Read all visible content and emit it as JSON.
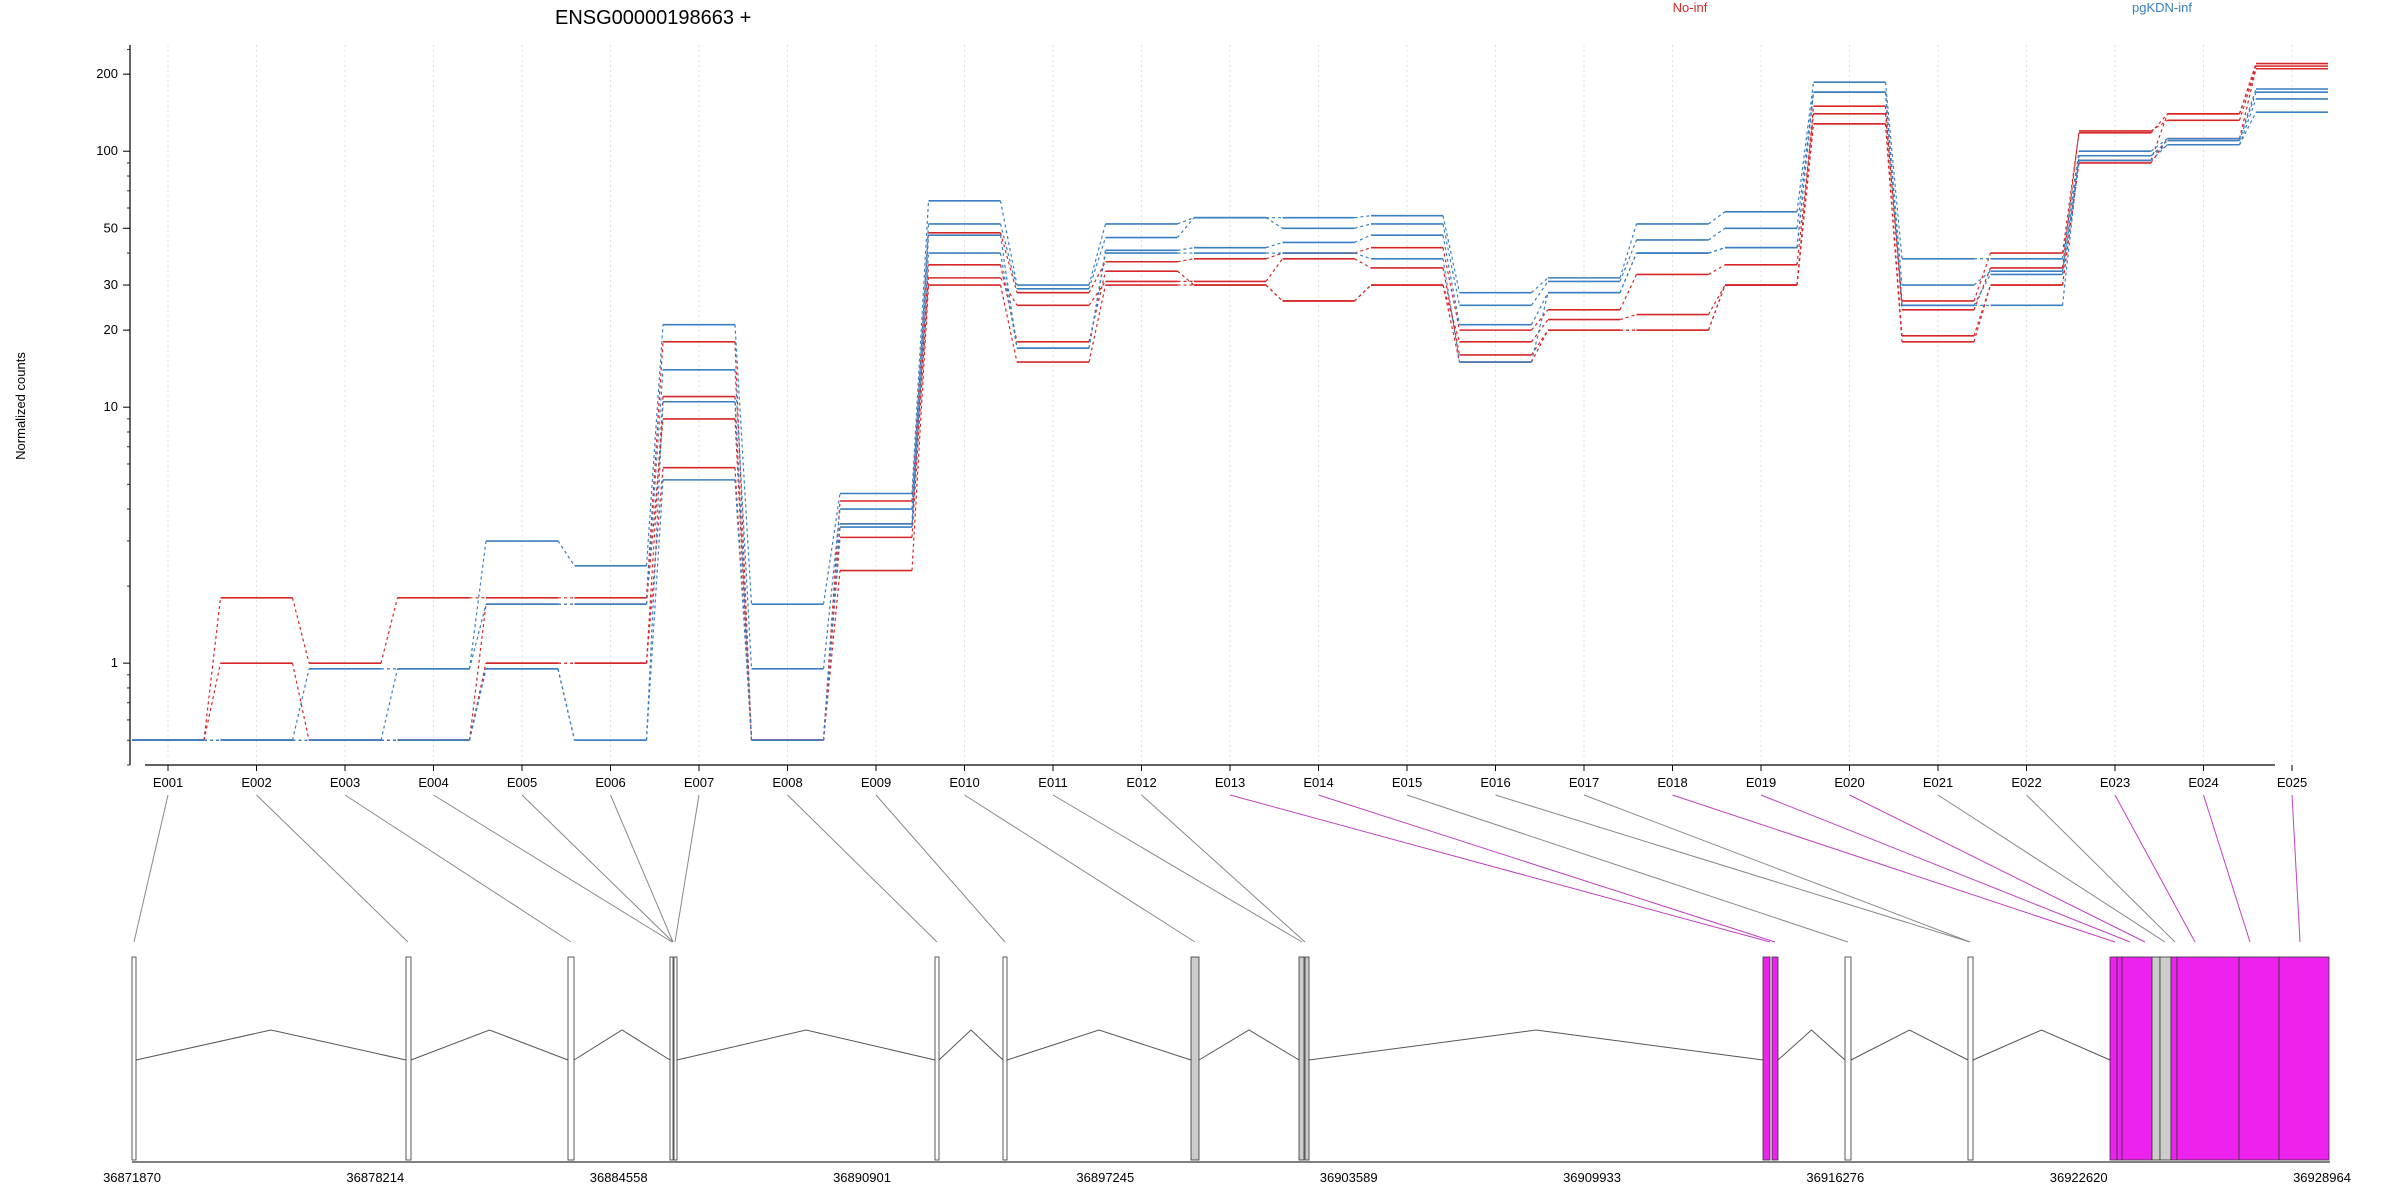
{
  "chart_data": {
    "type": "line",
    "title": "ENSG00000198663 +",
    "ylabel": "Normalized counts",
    "xlabel": "",
    "yscale": "log",
    "grid": "vertical dotted lines at exon tick positions",
    "legend": "top, text labels only",
    "colors": {
      "No-inf": "#d62728",
      "pgKDN-inf": "#3a7fc1",
      "connector": "#888888",
      "connector_highlight": "#c040c0",
      "exon_highlight": "#ee22ee",
      "exon_gray": "#cccccc"
    },
    "yticks": [
      "1",
      "10",
      "20",
      "30",
      "50",
      "100",
      "200"
    ],
    "categories": [
      "E001",
      "E002",
      "E003",
      "E004",
      "E005",
      "E006",
      "E007",
      "E008",
      "E009",
      "E010",
      "E011",
      "E012",
      "E013",
      "E014",
      "E015",
      "E016",
      "E017",
      "E018",
      "E019",
      "E020",
      "E021",
      "E022",
      "E023",
      "E024",
      "E025"
    ],
    "series": [
      {
        "name": "No-inf",
        "values": [
          0.5,
          1.8,
          1.0,
          1.8,
          1.8,
          1.8,
          18,
          0.5,
          4.3,
          48,
          28,
          37,
          38,
          40,
          42,
          20,
          24,
          33,
          36,
          140,
          26,
          40,
          118,
          140,
          220
        ]
      },
      {
        "name": "No-inf",
        "values": [
          0.5,
          1.0,
          0.5,
          0.5,
          1.0,
          1.0,
          11,
          0.5,
          3.5,
          36,
          18,
          34,
          30,
          26,
          30,
          18,
          22,
          23,
          30,
          150,
          24,
          35,
          120,
          132,
          210
        ]
      },
      {
        "name": "No-inf",
        "values": [
          0.5,
          0.5,
          0.5,
          0.5,
          1.7,
          1.7,
          9,
          0.5,
          3.1,
          32,
          25,
          31,
          31,
          38,
          35,
          16,
          20,
          20,
          30,
          128,
          19,
          30,
          92,
          140,
          215
        ]
      },
      {
        "name": "No-inf",
        "values": [
          0.5,
          0.5,
          0.5,
          0.5,
          1.0,
          1.0,
          5.8,
          0.5,
          2.3,
          30,
          15,
          30,
          30,
          26,
          30,
          15,
          20,
          20,
          30,
          128,
          18,
          30,
          90,
          112,
          210
        ]
      },
      {
        "name": "pgKDN-inf",
        "values": [
          0.5,
          0.5,
          0.95,
          0.95,
          3.0,
          2.4,
          21,
          1.7,
          4.6,
          64,
          30,
          52,
          55,
          55,
          56,
          28,
          32,
          52,
          58,
          186,
          38,
          38,
          100,
          112,
          175
        ]
      },
      {
        "name": "pgKDN-inf",
        "values": [
          0.5,
          0.5,
          0.5,
          0.95,
          1.7,
          1.7,
          14,
          0.95,
          4.0,
          52,
          29,
          46,
          55,
          50,
          52,
          25,
          31,
          45,
          50,
          170,
          30,
          34,
          96,
          110,
          170
        ]
      },
      {
        "name": "pgKDN-inf",
        "values": [
          0.5,
          0.5,
          0.5,
          0.5,
          0.95,
          0.5,
          10.5,
          0.5,
          3.5,
          47,
          17,
          41,
          42,
          44,
          47,
          21,
          28,
          40,
          42,
          170,
          25,
          33,
          92,
          106,
          160
        ]
      },
      {
        "name": "pgKDN-inf",
        "values": [
          0.5,
          0.5,
          0.5,
          0.5,
          0.95,
          0.5,
          5.2,
          0.5,
          3.4,
          40,
          17,
          40,
          40,
          40,
          38,
          15,
          28,
          40,
          42,
          170,
          25,
          25,
          96,
          106,
          142
        ]
      }
    ],
    "genomic_axis": {
      "tick_labels": [
        "36871870",
        "36878214",
        "36884558",
        "36890901",
        "36897245",
        "36903589",
        "36909933",
        "36916276",
        "36922620",
        "36928964"
      ]
    }
  }
}
